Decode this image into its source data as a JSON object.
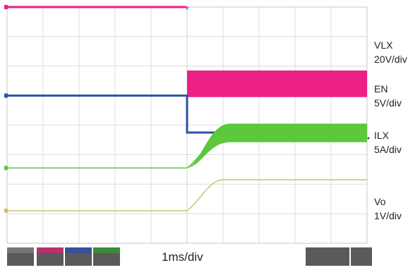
{
  "timebase": "1ms/div",
  "colors": {
    "vlx": "#ec1f82",
    "en": "#2e4fa6",
    "ilx": "#5cc83c",
    "vo": "#c9c26a",
    "grid": "#dcdcdc"
  },
  "channel_labels": {
    "vlx_name": "VLX",
    "vlx_scale": "20V/div",
    "en_name": "EN",
    "en_scale": "5V/div",
    "ilx_name": "ILX",
    "ilx_scale": "5A/div",
    "vo_name": "Vo",
    "vo_scale": "1V/div"
  },
  "chart_data": {
    "type": "line",
    "xlabel": "1ms/div",
    "grid": true,
    "x_divisions": 10,
    "y_divisions": 8,
    "series": [
      {
        "name": "VLX",
        "color": "#ec1f82",
        "kind": "switching",
        "points": [
          [
            0,
            0.0
          ],
          [
            5.0,
            0.0
          ]
        ],
        "band": [
          5.0,
          10.0,
          2.15,
          3.05
        ]
      },
      {
        "name": "EN",
        "color": "#2e4fa6",
        "kind": "step",
        "points": [
          [
            0,
            3.0
          ],
          [
            5.0,
            3.0
          ],
          [
            5.0,
            4.25
          ],
          [
            10.0,
            4.25
          ]
        ]
      },
      {
        "name": "ILX",
        "color": "#5cc83c",
        "kind": "ramp",
        "points": [
          [
            0,
            5.45
          ],
          [
            5.0,
            5.45
          ],
          [
            6.2,
            4.4
          ],
          [
            10.0,
            4.4
          ]
        ],
        "ripple": 0.45
      },
      {
        "name": "Vo",
        "color": "#c9c26a",
        "kind": "ramp",
        "points": [
          [
            0,
            6.9
          ],
          [
            5.0,
            6.9
          ],
          [
            6.0,
            5.85
          ],
          [
            10.0,
            5.85
          ]
        ]
      }
    ]
  }
}
